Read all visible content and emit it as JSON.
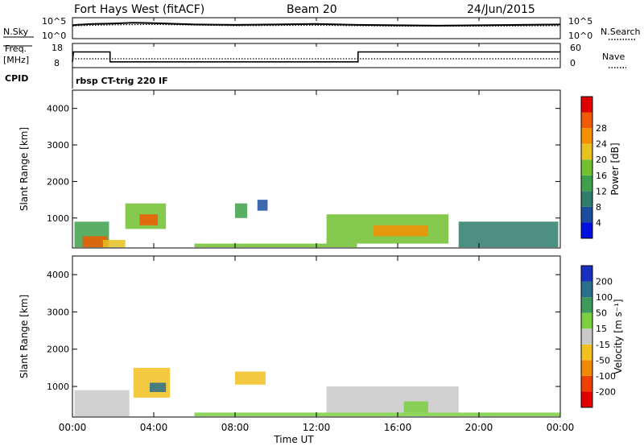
{
  "header": {
    "station": "Fort Hays West (fitACF)",
    "beam": "Beam 20",
    "date": "24/Jun/2015"
  },
  "noise_panel": {
    "left_label": "N.Sky",
    "left_ticks": [
      "10^5",
      "10^0"
    ],
    "right_label": "N.Search",
    "right_ticks": [
      "10^5",
      "10^0"
    ]
  },
  "freq_panel": {
    "left_label_line1": "Freq.",
    "left_label_line2": "[MHz]",
    "left_ticks": [
      "18",
      "8"
    ],
    "right_label": "Nave",
    "right_ticks": [
      "60",
      "0"
    ],
    "cpid_label": "CPID",
    "cpid_text": "rbsp CT-trig 220 IF"
  },
  "x_axis": {
    "label": "Time UT",
    "ticks": [
      "00:00",
      "04:00",
      "08:00",
      "12:00",
      "16:00",
      "20:00",
      "00:00"
    ]
  },
  "power_panel": {
    "ylabel": "Slant Range [km]",
    "yticks": [
      "1000",
      "2000",
      "3000",
      "4000"
    ],
    "colorbar_label": "Power [dB]",
    "colorbar_ticks": [
      "4",
      "8",
      "12",
      "16",
      "20",
      "24",
      "28"
    ],
    "colors": [
      "#0010e0",
      "#1c4ea0",
      "#2e7d6a",
      "#3ea04a",
      "#70c030",
      "#e8c020",
      "#f49000",
      "#f05a00",
      "#e00000"
    ]
  },
  "velocity_panel": {
    "ylabel": "Slant Range [km]",
    "yticks": [
      "1000",
      "2000",
      "3000",
      "4000"
    ],
    "colorbar_label": "Velocity [m s⁻¹]",
    "colorbar_ticks": [
      "200",
      "100",
      "50",
      "15",
      "-15",
      "-50",
      "-100",
      "-200"
    ],
    "colors": [
      "#1830c0",
      "#2a6e8a",
      "#3e9a5a",
      "#7ad040",
      "#c8c8c8",
      "#f0c020",
      "#f08a00",
      "#f04000",
      "#e00000"
    ]
  },
  "chart_data": [
    {
      "type": "line",
      "x_range_hours": [
        0,
        24
      ],
      "series": [
        {
          "values": [
            [
              0.0,
              3.2
            ],
            [
              0.2,
              3.3
            ],
            [
              1.0,
              3.5
            ],
            [
              2.0,
              3.6
            ],
            [
              3.0,
              3.8
            ],
            [
              4.0,
              3.7
            ],
            [
              6.0,
              3.4
            ],
            [
              8.0,
              3.3
            ],
            [
              10.0,
              3.4
            ],
            [
              12.0,
              3.5
            ],
            [
              14.0,
              3.3
            ],
            [
              16.0,
              3.2
            ],
            [
              18.0,
              3.1
            ],
            [
              20.0,
              3.2
            ],
            [
              22.0,
              3.3
            ],
            [
              24.0,
              3.4
            ]
          ]
        },
        {
          "values": [
            [
              0.0,
              3.0
            ],
            [
              0.2,
              3.1
            ],
            [
              2.0,
              3.3
            ],
            [
              4.0,
              3.4
            ],
            [
              8.0,
              3.1
            ],
            [
              12.0,
              3.2
            ],
            [
              16.0,
              3.0
            ],
            [
              20.0,
              3.0
            ],
            [
              24.0,
              3.1
            ]
          ]
        }
      ],
      "ylim": [
        0,
        5
      ]
    },
    {
      "type": "line",
      "x_range_hours": [
        0,
        24
      ],
      "series": [
        {
          "values": [
            [
              0.0,
              10.4
            ],
            [
              0.05,
              14.5
            ],
            [
              1.85,
              14.5
            ],
            [
              1.85,
              10.4
            ],
            [
              14.05,
              10.4
            ],
            [
              14.05,
              14.5
            ],
            [
              24.0,
              14.5
            ]
          ]
        },
        {
          "values": [
            [
              0.0,
              22
            ],
            [
              24.0,
              22
            ]
          ]
        }
      ],
      "ylim_left": [
        8,
        18
      ],
      "ylim_right": [
        0,
        60
      ]
    },
    {
      "type": "heatmap",
      "ylabel": "Slant Range [km]",
      "x_range_hours": [
        0,
        24
      ],
      "ylim": [
        180,
        4500
      ],
      "clim": [
        0,
        30
      ],
      "cells": [
        {
          "t0": 0.1,
          "t1": 1.8,
          "r0": 200,
          "r1": 900,
          "v": 12
        },
        {
          "t0": 0.5,
          "t1": 1.7,
          "r0": 200,
          "r1": 500,
          "v": 26
        },
        {
          "t0": 1.5,
          "t1": 2.6,
          "r0": 200,
          "r1": 400,
          "v": 18
        },
        {
          "t0": 2.6,
          "t1": 4.6,
          "r0": 700,
          "r1": 1400,
          "v": 14
        },
        {
          "t0": 3.3,
          "t1": 4.2,
          "r0": 800,
          "r1": 1100,
          "v": 24
        },
        {
          "t0": 8.0,
          "t1": 8.6,
          "r0": 1000,
          "r1": 1400,
          "v": 12
        },
        {
          "t0": 9.1,
          "t1": 9.6,
          "r0": 1200,
          "r1": 1500,
          "v": 6
        },
        {
          "t0": 6.0,
          "t1": 14.0,
          "r0": 200,
          "r1": 300,
          "v": 14
        },
        {
          "t0": 12.5,
          "t1": 18.5,
          "r0": 300,
          "r1": 1100,
          "v": 16
        },
        {
          "t0": 14.8,
          "t1": 17.5,
          "r0": 500,
          "r1": 800,
          "v": 22
        },
        {
          "t0": 19.0,
          "t1": 23.9,
          "r0": 200,
          "r1": 900,
          "v": 8
        }
      ]
    },
    {
      "type": "heatmap",
      "ylabel": "Slant Range [km]",
      "x_range_hours": [
        0,
        24
      ],
      "ylim": [
        180,
        4500
      ],
      "clim": [
        -250,
        250
      ],
      "cells": [
        {
          "t0": 0.1,
          "t1": 2.8,
          "r0": 200,
          "r1": 900,
          "v": 0
        },
        {
          "t0": 3.0,
          "t1": 4.8,
          "r0": 700,
          "r1": 1500,
          "v": 60
        },
        {
          "t0": 3.8,
          "t1": 4.6,
          "r0": 850,
          "r1": 1100,
          "v": -150
        },
        {
          "t0": 8.0,
          "t1": 9.5,
          "r0": 1050,
          "r1": 1400,
          "v": 40
        },
        {
          "t0": 6.0,
          "t1": 24.0,
          "r0": 200,
          "r1": 300,
          "v": -40
        },
        {
          "t0": 12.5,
          "t1": 19.0,
          "r0": 300,
          "r1": 1000,
          "v": 0
        },
        {
          "t0": 16.3,
          "t1": 17.5,
          "r0": 300,
          "r1": 600,
          "v": -60
        }
      ]
    }
  ]
}
